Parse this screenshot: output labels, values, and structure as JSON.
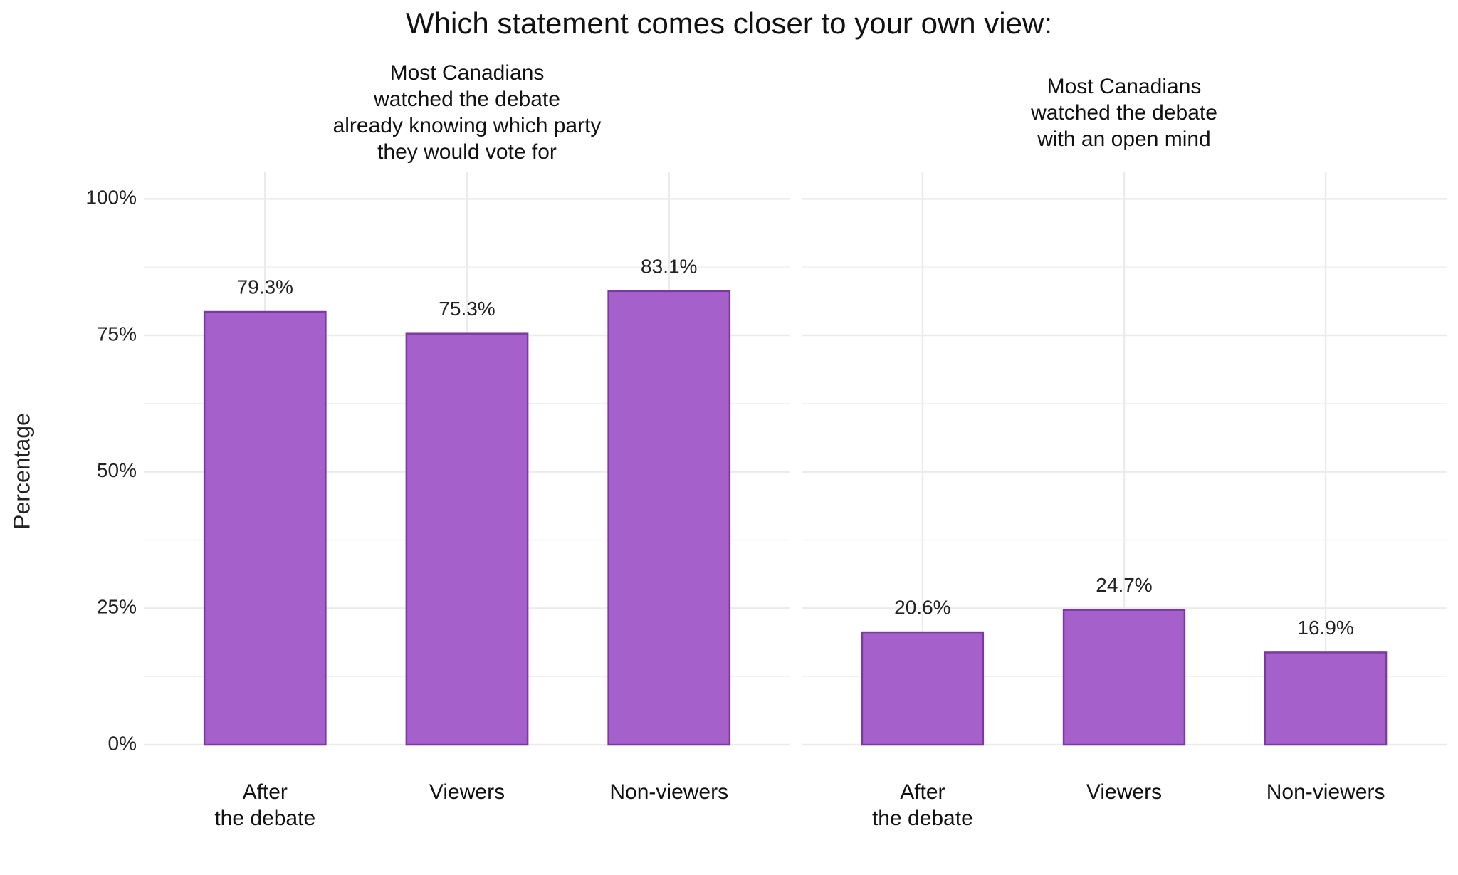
{
  "title": "Which statement comes closer to your own view:",
  "y_label": "Percentage",
  "chart_data": [
    {
      "type": "bar",
      "subtitle": "Most Canadians\nwatched the debate\nalready knowing which party\nthey would vote for",
      "categories": [
        "After\nthe debate",
        "Viewers",
        "Non-viewers"
      ],
      "values": [
        79.3,
        75.3,
        83.1
      ],
      "value_labels": [
        "79.3%",
        "75.3%",
        "83.1%"
      ],
      "color": "#a660cc",
      "edge_color": "#7a3a9e",
      "ylim": [
        0,
        105
      ],
      "yticks": [
        {
          "value": 0,
          "label": "0%"
        },
        {
          "value": 25,
          "label": "25%"
        },
        {
          "value": 50,
          "label": "50%"
        },
        {
          "value": 75,
          "label": "75%"
        },
        {
          "value": 100,
          "label": "100%"
        }
      ],
      "minor_yticks": [
        12.5,
        37.5,
        62.5,
        87.5
      ],
      "grid": true,
      "show_ytick_labels": true
    },
    {
      "type": "bar",
      "subtitle": "Most Canadians\nwatched the debate\nwith an open mind",
      "categories": [
        "After\nthe debate",
        "Viewers",
        "Non-viewers"
      ],
      "values": [
        20.6,
        24.7,
        16.9
      ],
      "value_labels": [
        "20.6%",
        "24.7%",
        "16.9%"
      ],
      "color": "#a660cc",
      "edge_color": "#7a3a9e",
      "ylim": [
        0,
        105
      ],
      "yticks": [
        {
          "value": 0,
          "label": "0%"
        },
        {
          "value": 25,
          "label": "25%"
        },
        {
          "value": 50,
          "label": "50%"
        },
        {
          "value": 75,
          "label": "75%"
        },
        {
          "value": 100,
          "label": "100%"
        }
      ],
      "minor_yticks": [
        12.5,
        37.5,
        62.5,
        87.5
      ],
      "grid": true,
      "show_ytick_labels": false
    }
  ]
}
